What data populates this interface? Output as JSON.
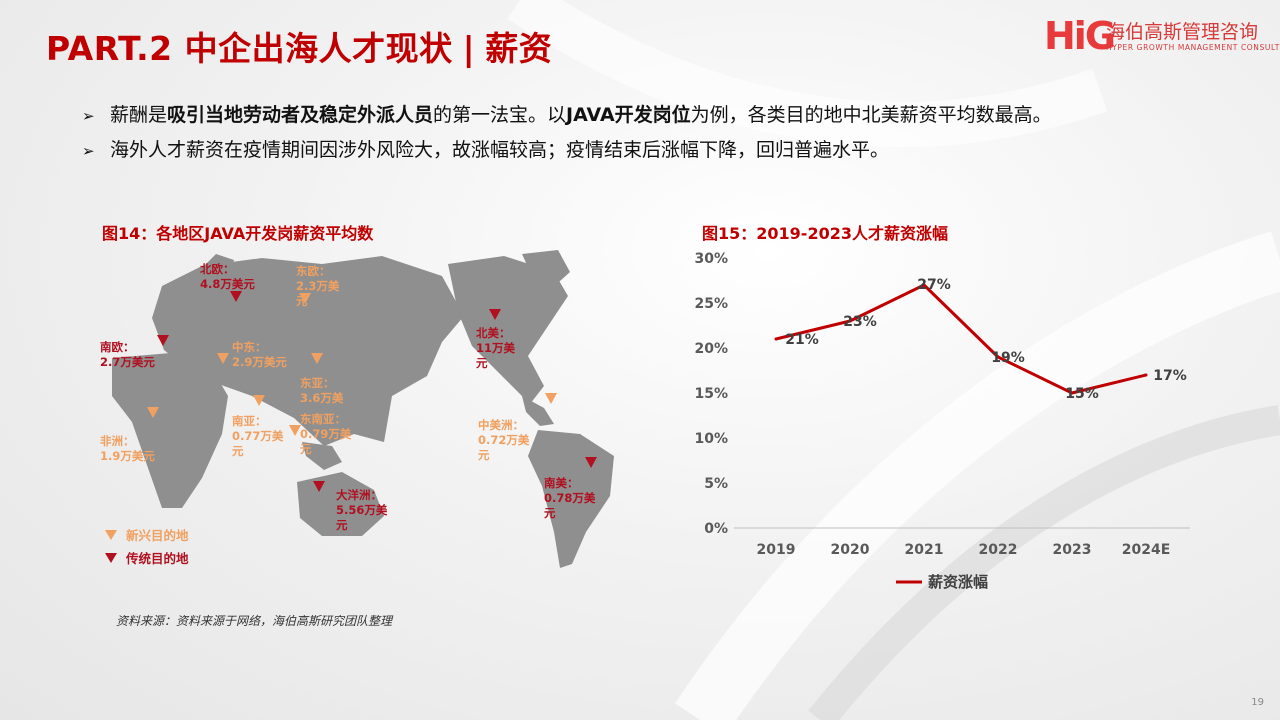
{
  "title": {
    "main": "PART.2 中企出海人才现状",
    "separator": "|",
    "sub": "薪资"
  },
  "logo": {
    "mark": "HiG",
    "cn": "海伯高斯管理咨询",
    "en": "HYPER GROWTH MANAGEMENT CONSULTING"
  },
  "bullets": [
    {
      "segments": [
        {
          "text": "薪酬是",
          "bold": false
        },
        {
          "text": "吸引当地劳动者及稳定外派人员",
          "bold": true
        },
        {
          "text": "的第一法宝。以",
          "bold": false
        },
        {
          "text": "JAVA开发岗位",
          "bold": true
        },
        {
          "text": "为例，各类目的地中北美薪资平均数最高。",
          "bold": false
        }
      ]
    },
    {
      "segments": [
        {
          "text": "海外人才薪资在疫情期间因涉外风险大，故涨幅较高；疫情结束后涨幅下降，回归普遍水平。",
          "bold": false
        }
      ]
    }
  ],
  "fig14": {
    "title": "图14：各地区JAVA开发岗薪资平均数",
    "regions": [
      {
        "id": "north-europe",
        "lines": [
          "北欧：",
          "4.8万美元"
        ],
        "type": "traditional"
      },
      {
        "id": "east-europe",
        "lines": [
          "东欧：",
          "2.3万美",
          "元"
        ],
        "type": "emerging"
      },
      {
        "id": "south-europe",
        "lines": [
          "南欧：",
          "2.7万美元"
        ],
        "type": "traditional"
      },
      {
        "id": "middle-east",
        "lines": [
          "中东：",
          "2.9万美元"
        ],
        "type": "emerging"
      },
      {
        "id": "east-asia",
        "lines": [
          "东亚：",
          "3.6万美"
        ],
        "type": "emerging"
      },
      {
        "id": "southeast-asia",
        "lines": [
          "东南亚：",
          "0.79万美",
          "元"
        ],
        "type": "emerging"
      },
      {
        "id": "south-asia",
        "lines": [
          "南亚：",
          "0.77万美",
          "元"
        ],
        "type": "emerging"
      },
      {
        "id": "africa",
        "lines": [
          "非洲：",
          "1.9万美元"
        ],
        "type": "emerging"
      },
      {
        "id": "oceania",
        "lines": [
          "大洋洲：",
          "5.56万美",
          "元"
        ],
        "type": "traditional"
      },
      {
        "id": "north-america",
        "lines": [
          "北美：",
          "11万美",
          "元"
        ],
        "type": "traditional"
      },
      {
        "id": "central-america",
        "lines": [
          "中美洲：",
          "0.72万美",
          "元"
        ],
        "type": "emerging"
      },
      {
        "id": "south-america",
        "lines": [
          "南美：",
          "0.78万美",
          "元"
        ],
        "type": "traditional"
      }
    ],
    "legend": {
      "emerging": "新兴目的地",
      "traditional": "传统目的地"
    },
    "colors": {
      "traditional": "#b01020",
      "emerging": "#f0a060",
      "land": "#8f8f8f"
    }
  },
  "chart_data": {
    "type": "line",
    "title": "图15：2019-2023人才薪资涨幅",
    "categories": [
      "2019",
      "2020",
      "2021",
      "2022",
      "2023",
      "2024E"
    ],
    "series": [
      {
        "name": "薪资涨幅",
        "values": [
          21,
          23,
          27,
          19,
          15,
          17
        ],
        "labels": [
          "21%",
          "23%",
          "27%",
          "19%",
          "15%",
          "17%"
        ],
        "color": "#c00000"
      }
    ],
    "ylim": [
      0,
      30
    ],
    "yticks": [
      0,
      5,
      10,
      15,
      20,
      25,
      30
    ],
    "ytick_labels": [
      "0%",
      "5%",
      "10%",
      "15%",
      "20%",
      "25%",
      "30%"
    ],
    "grid": false,
    "legend_position": "bottom"
  },
  "source": "资料来源：资料来源于网络，海伯高斯研究团队整理",
  "page_number": "19"
}
